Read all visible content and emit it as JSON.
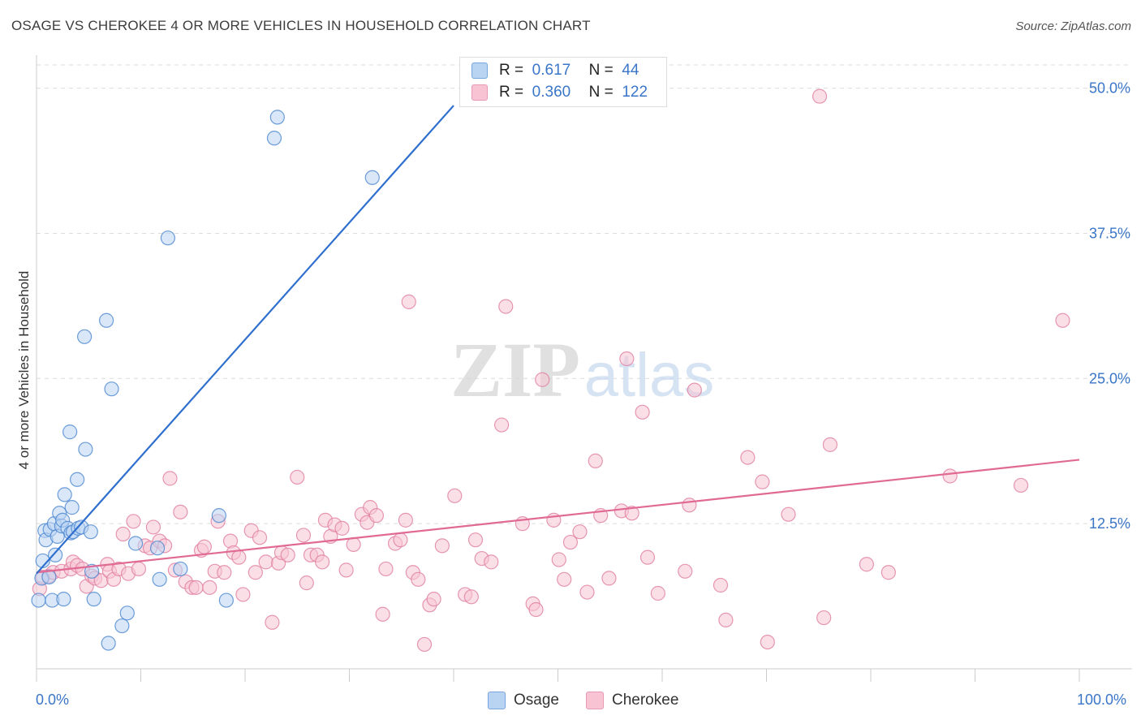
{
  "title": "OSAGE VS CHEROKEE 4 OR MORE VEHICLES IN HOUSEHOLD CORRELATION CHART",
  "source": "Source: ZipAtlas.com",
  "watermark": {
    "zip": "ZIP",
    "atlas": "atlas"
  },
  "legend": {
    "r_label": "R =",
    "n_label": "N =",
    "osage": {
      "r": "0.617",
      "n": "44"
    },
    "cherokee": {
      "r": "0.360",
      "n": "122"
    }
  },
  "colors": {
    "osage_fill": "#b9d3f3",
    "osage_stroke": "#4a86d0",
    "osage_line": "#2f6fce",
    "cherokee_fill": "#f8c4d4",
    "cherokee_stroke": "#e07ea0",
    "cherokee_line": "#e06a94",
    "tick_text": "#3a76c8",
    "grid": "#dcdcdc"
  },
  "chart_data": {
    "type": "scatter",
    "title": "OSAGE VS CHEROKEE 4 OR MORE VEHICLES IN HOUSEHOLD CORRELATION CHART",
    "xlabel": "",
    "ylabel": "4 or more Vehicles in Household",
    "xlim": [
      0,
      100
    ],
    "ylim": [
      0,
      52
    ],
    "x_tick_labels": [
      "0.0%",
      "100.0%"
    ],
    "y_ticks": [
      12.5,
      25.0,
      37.5,
      50.0
    ],
    "y_tick_labels": [
      "12.5%",
      "25.0%",
      "37.5%",
      "50.0%"
    ],
    "grid": true,
    "legend_placement": "bottom-center",
    "series": [
      {
        "name": "Osage",
        "trend": {
          "x0": 0,
          "y0": 8.2,
          "x1": 40,
          "y1": 48.5
        },
        "points": [
          [
            0.2,
            5.9
          ],
          [
            0.5,
            7.8
          ],
          [
            0.6,
            9.3
          ],
          [
            0.8,
            11.9
          ],
          [
            0.9,
            11.1
          ],
          [
            1.2,
            7.9
          ],
          [
            1.3,
            12.0
          ],
          [
            1.5,
            5.9
          ],
          [
            1.7,
            12.5
          ],
          [
            1.8,
            9.8
          ],
          [
            2.0,
            11.4
          ],
          [
            2.2,
            13.4
          ],
          [
            2.4,
            12.3
          ],
          [
            2.5,
            12.8
          ],
          [
            2.6,
            6.0
          ],
          [
            2.7,
            15.0
          ],
          [
            3.0,
            12.1
          ],
          [
            3.2,
            20.4
          ],
          [
            3.3,
            11.7
          ],
          [
            3.4,
            13.9
          ],
          [
            3.5,
            11.8
          ],
          [
            3.9,
            16.3
          ],
          [
            4.0,
            12.1
          ],
          [
            4.3,
            12.2
          ],
          [
            4.6,
            28.6
          ],
          [
            4.7,
            18.9
          ],
          [
            5.2,
            11.8
          ],
          [
            5.3,
            8.4
          ],
          [
            5.5,
            6.0
          ],
          [
            6.7,
            30.0
          ],
          [
            6.9,
            2.2
          ],
          [
            7.2,
            24.1
          ],
          [
            8.2,
            3.7
          ],
          [
            8.7,
            4.8
          ],
          [
            9.5,
            10.8
          ],
          [
            11.6,
            10.4
          ],
          [
            11.8,
            7.7
          ],
          [
            12.6,
            37.1
          ],
          [
            13.8,
            8.6
          ],
          [
            17.5,
            13.2
          ],
          [
            18.2,
            5.9
          ],
          [
            22.8,
            45.7
          ],
          [
            23.1,
            47.5
          ],
          [
            32.2,
            42.3
          ]
        ]
      },
      {
        "name": "Cherokee",
        "trend": {
          "x0": 0,
          "y0": 8.3,
          "x1": 100,
          "y1": 18.0
        },
        "points": [
          [
            0.3,
            6.9
          ],
          [
            0.6,
            7.9
          ],
          [
            1.2,
            8.0
          ],
          [
            1.6,
            8.3
          ],
          [
            2.4,
            8.4
          ],
          [
            3.3,
            8.6
          ],
          [
            3.5,
            9.2
          ],
          [
            3.9,
            8.9
          ],
          [
            4.4,
            8.6
          ],
          [
            4.8,
            7.1
          ],
          [
            5.3,
            8.0
          ],
          [
            5.6,
            7.8
          ],
          [
            6.2,
            7.6
          ],
          [
            6.8,
            9.0
          ],
          [
            7.0,
            8.4
          ],
          [
            7.4,
            7.7
          ],
          [
            7.9,
            8.6
          ],
          [
            8.3,
            11.6
          ],
          [
            8.8,
            8.2
          ],
          [
            9.3,
            12.7
          ],
          [
            9.8,
            8.6
          ],
          [
            10.4,
            10.6
          ],
          [
            10.9,
            10.4
          ],
          [
            11.2,
            12.2
          ],
          [
            11.8,
            11.0
          ],
          [
            12.3,
            10.6
          ],
          [
            12.8,
            16.4
          ],
          [
            13.3,
            8.5
          ],
          [
            13.8,
            13.5
          ],
          [
            14.3,
            7.5
          ],
          [
            14.9,
            7.0
          ],
          [
            15.3,
            7.0
          ],
          [
            15.8,
            10.2
          ],
          [
            16.1,
            10.5
          ],
          [
            16.6,
            7.0
          ],
          [
            17.1,
            8.4
          ],
          [
            17.4,
            12.7
          ],
          [
            18.0,
            8.3
          ],
          [
            18.6,
            11.0
          ],
          [
            18.9,
            10.0
          ],
          [
            19.4,
            9.6
          ],
          [
            19.8,
            6.4
          ],
          [
            20.6,
            11.9
          ],
          [
            21.0,
            8.3
          ],
          [
            21.4,
            11.3
          ],
          [
            22.0,
            9.2
          ],
          [
            22.6,
            4.0
          ],
          [
            23.2,
            9.1
          ],
          [
            23.5,
            10.0
          ],
          [
            24.1,
            9.8
          ],
          [
            25.0,
            16.5
          ],
          [
            25.6,
            11.5
          ],
          [
            25.9,
            7.4
          ],
          [
            26.3,
            9.8
          ],
          [
            26.9,
            9.8
          ],
          [
            27.4,
            9.2
          ],
          [
            27.7,
            12.8
          ],
          [
            28.2,
            11.4
          ],
          [
            28.6,
            12.4
          ],
          [
            29.3,
            12.1
          ],
          [
            29.7,
            8.5
          ],
          [
            30.4,
            10.7
          ],
          [
            31.2,
            13.3
          ],
          [
            31.7,
            12.6
          ],
          [
            32.0,
            13.9
          ],
          [
            32.6,
            13.2
          ],
          [
            33.2,
            4.7
          ],
          [
            33.5,
            8.6
          ],
          [
            34.4,
            10.8
          ],
          [
            34.9,
            11.1
          ],
          [
            35.4,
            12.8
          ],
          [
            35.7,
            31.6
          ],
          [
            36.1,
            8.3
          ],
          [
            36.6,
            7.7
          ],
          [
            37.2,
            2.1
          ],
          [
            37.7,
            5.5
          ],
          [
            38.1,
            6.0
          ],
          [
            38.9,
            10.6
          ],
          [
            40.1,
            14.9
          ],
          [
            41.1,
            6.4
          ],
          [
            41.7,
            6.2
          ],
          [
            42.1,
            11.1
          ],
          [
            42.7,
            9.5
          ],
          [
            43.6,
            9.2
          ],
          [
            44.6,
            21.0
          ],
          [
            45.0,
            31.2
          ],
          [
            46.6,
            12.5
          ],
          [
            47.6,
            5.6
          ],
          [
            47.9,
            5.1
          ],
          [
            48.5,
            24.9
          ],
          [
            49.6,
            12.8
          ],
          [
            50.1,
            9.4
          ],
          [
            50.6,
            7.7
          ],
          [
            51.2,
            10.9
          ],
          [
            52.1,
            11.8
          ],
          [
            52.8,
            6.6
          ],
          [
            53.6,
            17.9
          ],
          [
            54.1,
            13.2
          ],
          [
            54.9,
            7.8
          ],
          [
            56.1,
            13.6
          ],
          [
            56.6,
            26.7
          ],
          [
            57.1,
            13.4
          ],
          [
            58.1,
            22.1
          ],
          [
            58.6,
            9.6
          ],
          [
            59.6,
            6.5
          ],
          [
            62.2,
            8.4
          ],
          [
            62.6,
            14.1
          ],
          [
            63.1,
            24.0
          ],
          [
            65.6,
            7.2
          ],
          [
            66.1,
            4.2
          ],
          [
            68.2,
            18.2
          ],
          [
            69.6,
            16.1
          ],
          [
            70.1,
            2.3
          ],
          [
            72.1,
            13.3
          ],
          [
            75.1,
            49.3
          ],
          [
            75.5,
            4.4
          ],
          [
            76.1,
            19.3
          ],
          [
            79.6,
            9.0
          ],
          [
            81.7,
            8.3
          ],
          [
            87.6,
            16.6
          ],
          [
            94.4,
            15.8
          ],
          [
            98.4,
            30.0
          ]
        ]
      }
    ]
  }
}
